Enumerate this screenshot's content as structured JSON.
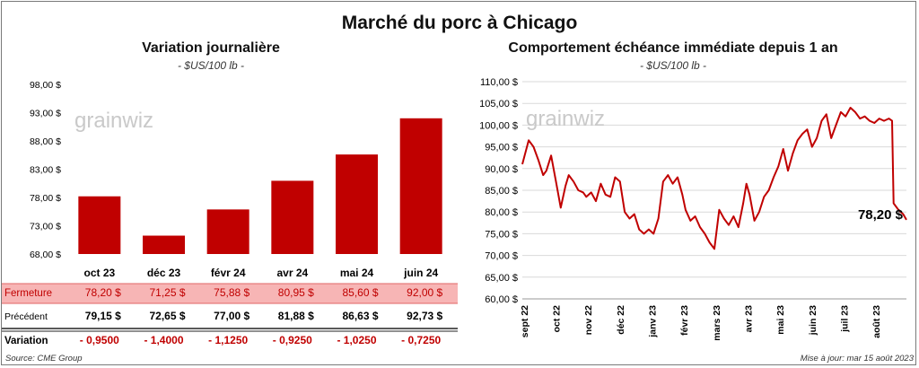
{
  "title": "Marché du porc à Chicago",
  "watermark": "grainwiz",
  "colors": {
    "accent": "#c00000",
    "table_highlight": "#f7b5b5",
    "grid": "#d9d9d9"
  },
  "left_panel": {
    "title": "Variation  journalière",
    "subtitle": "- $US/100 lb -",
    "row_labels": {
      "close": "Fermeture",
      "previous": "Précédent",
      "variation": "Variation"
    }
  },
  "right_panel": {
    "title": "Comportement  échéance immédiate depuis 1 an",
    "subtitle": "- $US/100 lb -",
    "last_value_label": "78,20 $"
  },
  "footer": {
    "source": "Source: CME Group",
    "updated": "Mise à jour: mar 15 août 2023"
  },
  "chart_data": [
    {
      "type": "bar",
      "categories": [
        "oct 23",
        "déc 23",
        "févr 24",
        "avr 24",
        "mai 24",
        "juin 24"
      ],
      "values": [
        78.2,
        71.25,
        75.88,
        80.95,
        85.6,
        92.0
      ],
      "ylim": [
        68.0,
        98.0
      ],
      "yticks": [
        "68,00 $",
        "73,00 $",
        "78,00 $",
        "83,00 $",
        "88,00 $",
        "93,00 $",
        "98,00 $"
      ],
      "table": {
        "close": [
          "78,20  $",
          "71,25  $",
          "75,88  $",
          "80,95  $",
          "85,60  $",
          "92,00  $"
        ],
        "previous": [
          "79,15  $",
          "72,65  $",
          "77,00  $",
          "81,88  $",
          "86,63  $",
          "92,73  $"
        ],
        "variation": [
          "- 0,9500",
          "- 1,4000",
          "- 1,1250",
          "- 0,9250",
          "- 1,0250",
          "- 0,7250"
        ]
      }
    },
    {
      "type": "line",
      "ylim": [
        60,
        110
      ],
      "yticks": [
        "60,00 $",
        "65,00 $",
        "70,00 $",
        "75,00 $",
        "80,00 $",
        "85,00 $",
        "90,00 $",
        "95,00 $",
        "100,00 $",
        "105,00 $",
        "110,00 $"
      ],
      "xticks": [
        "sept 22",
        "oct 22",
        "nov 22",
        "déc 22",
        "janv 23",
        "févr 23",
        "mars 23",
        "avr 23",
        "mai 23",
        "juin 23",
        "juil 23",
        "août 23"
      ],
      "x_range": [
        0,
        12
      ],
      "x": [
        0,
        0.2,
        0.35,
        0.5,
        0.65,
        0.75,
        0.9,
        1.05,
        1.2,
        1.35,
        1.45,
        1.6,
        1.75,
        1.9,
        2.0,
        2.15,
        2.3,
        2.45,
        2.6,
        2.75,
        2.9,
        3.05,
        3.2,
        3.35,
        3.5,
        3.65,
        3.8,
        3.95,
        4.1,
        4.25,
        4.4,
        4.55,
        4.7,
        4.85,
        5.0,
        5.1,
        5.25,
        5.4,
        5.55,
        5.7,
        5.85,
        6.0,
        6.15,
        6.3,
        6.45,
        6.6,
        6.75,
        6.9,
        7.0,
        7.1,
        7.25,
        7.4,
        7.55,
        7.7,
        7.85,
        8.0,
        8.15,
        8.3,
        8.45,
        8.6,
        8.75,
        8.9,
        9.05,
        9.2,
        9.35,
        9.5,
        9.65,
        9.8,
        9.95,
        10.1,
        10.25,
        10.4,
        10.55,
        10.7,
        10.85,
        11.0,
        11.15,
        11.3,
        11.45,
        11.55,
        11.6,
        11.75,
        11.9,
        12.0
      ],
      "y": [
        91,
        96.5,
        95,
        92,
        88.5,
        89.5,
        93,
        87,
        81,
        86,
        88.5,
        87,
        85,
        84.5,
        83.5,
        84.5,
        82.5,
        86.5,
        84,
        83.5,
        88,
        87,
        80,
        78.5,
        79.5,
        76,
        75,
        76,
        75,
        78.5,
        87,
        88.5,
        86.5,
        88,
        84,
        80.5,
        78,
        79,
        76.5,
        75,
        73,
        71.5,
        80.5,
        78.5,
        77,
        79,
        76.5,
        82,
        86.5,
        84,
        78,
        80,
        83.5,
        85,
        88,
        90.5,
        94.5,
        89.5,
        93.5,
        96.5,
        98,
        99,
        95,
        97,
        101,
        102.5,
        97,
        100,
        103,
        102,
        104,
        103,
        101.5,
        102,
        101,
        100.5,
        101.5,
        101,
        101.5,
        101,
        82,
        80.5,
        79.5,
        78.2
      ]
    }
  ]
}
